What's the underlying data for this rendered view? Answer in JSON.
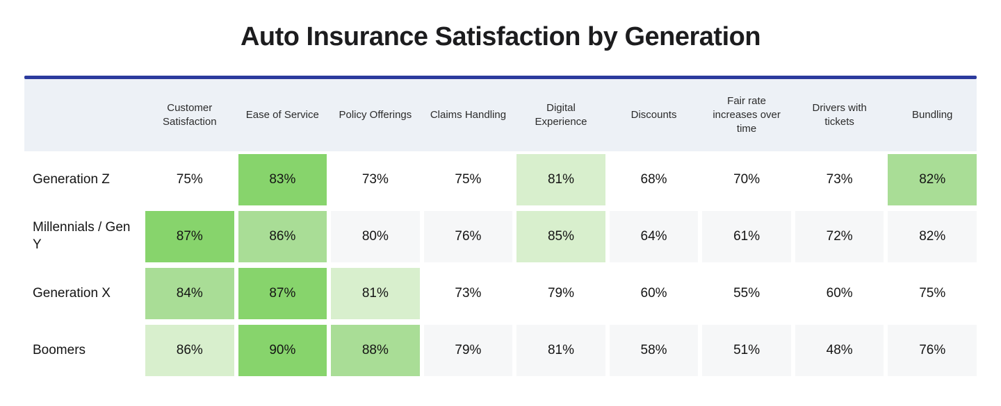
{
  "title": "Auto Insurance Satisfaction by Generation",
  "colors": {
    "divider_blue": "#2b3a9d",
    "header_bg": "#edf1f6",
    "zebra_bg": "#f6f7f8",
    "green_strong": "#87d46c",
    "green_medium": "#a9dd96",
    "green_light": "#d8efcd",
    "text_dark": "#141414"
  },
  "chart_data": {
    "type": "heatmap",
    "title": "Auto Insurance Satisfaction by Generation",
    "value_unit": "%",
    "legend": "none",
    "columns": [
      "Customer Satisfaction",
      "Ease of Service",
      "Policy Offerings",
      "Claims Handling",
      "Digital Experience",
      "Discounts",
      "Fair rate increases over time",
      "Drivers with tickets",
      "Bundling"
    ],
    "rows": [
      {
        "label": "Generation Z",
        "values": [
          "75%",
          "83%",
          "73%",
          "75%",
          "81%",
          "68%",
          "70%",
          "73%",
          "82%"
        ],
        "numeric_values": [
          75,
          83,
          73,
          75,
          81,
          68,
          70,
          73,
          82
        ],
        "highlights": [
          0,
          3,
          0,
          0,
          1,
          0,
          0,
          0,
          2
        ],
        "zebra": false
      },
      {
        "label": "Millennials / Gen Y",
        "values": [
          "87%",
          "86%",
          "80%",
          "76%",
          "85%",
          "64%",
          "61%",
          "72%",
          "82%"
        ],
        "numeric_values": [
          87,
          86,
          80,
          76,
          85,
          64,
          61,
          72,
          82
        ],
        "highlights": [
          3,
          2,
          0,
          0,
          1,
          0,
          0,
          0,
          0
        ],
        "zebra": true
      },
      {
        "label": "Generation X",
        "values": [
          "84%",
          "87%",
          "81%",
          "73%",
          "79%",
          "60%",
          "55%",
          "60%",
          "75%"
        ],
        "numeric_values": [
          84,
          87,
          81,
          73,
          79,
          60,
          55,
          60,
          75
        ],
        "highlights": [
          2,
          3,
          1,
          0,
          0,
          0,
          0,
          0,
          0
        ],
        "zebra": false
      },
      {
        "label": "Boomers",
        "values": [
          "86%",
          "90%",
          "88%",
          "79%",
          "81%",
          "58%",
          "51%",
          "48%",
          "76%"
        ],
        "numeric_values": [
          86,
          90,
          88,
          79,
          81,
          58,
          51,
          48,
          76
        ],
        "highlights": [
          1,
          3,
          2,
          0,
          0,
          0,
          0,
          0,
          0
        ],
        "zebra": true
      }
    ]
  }
}
